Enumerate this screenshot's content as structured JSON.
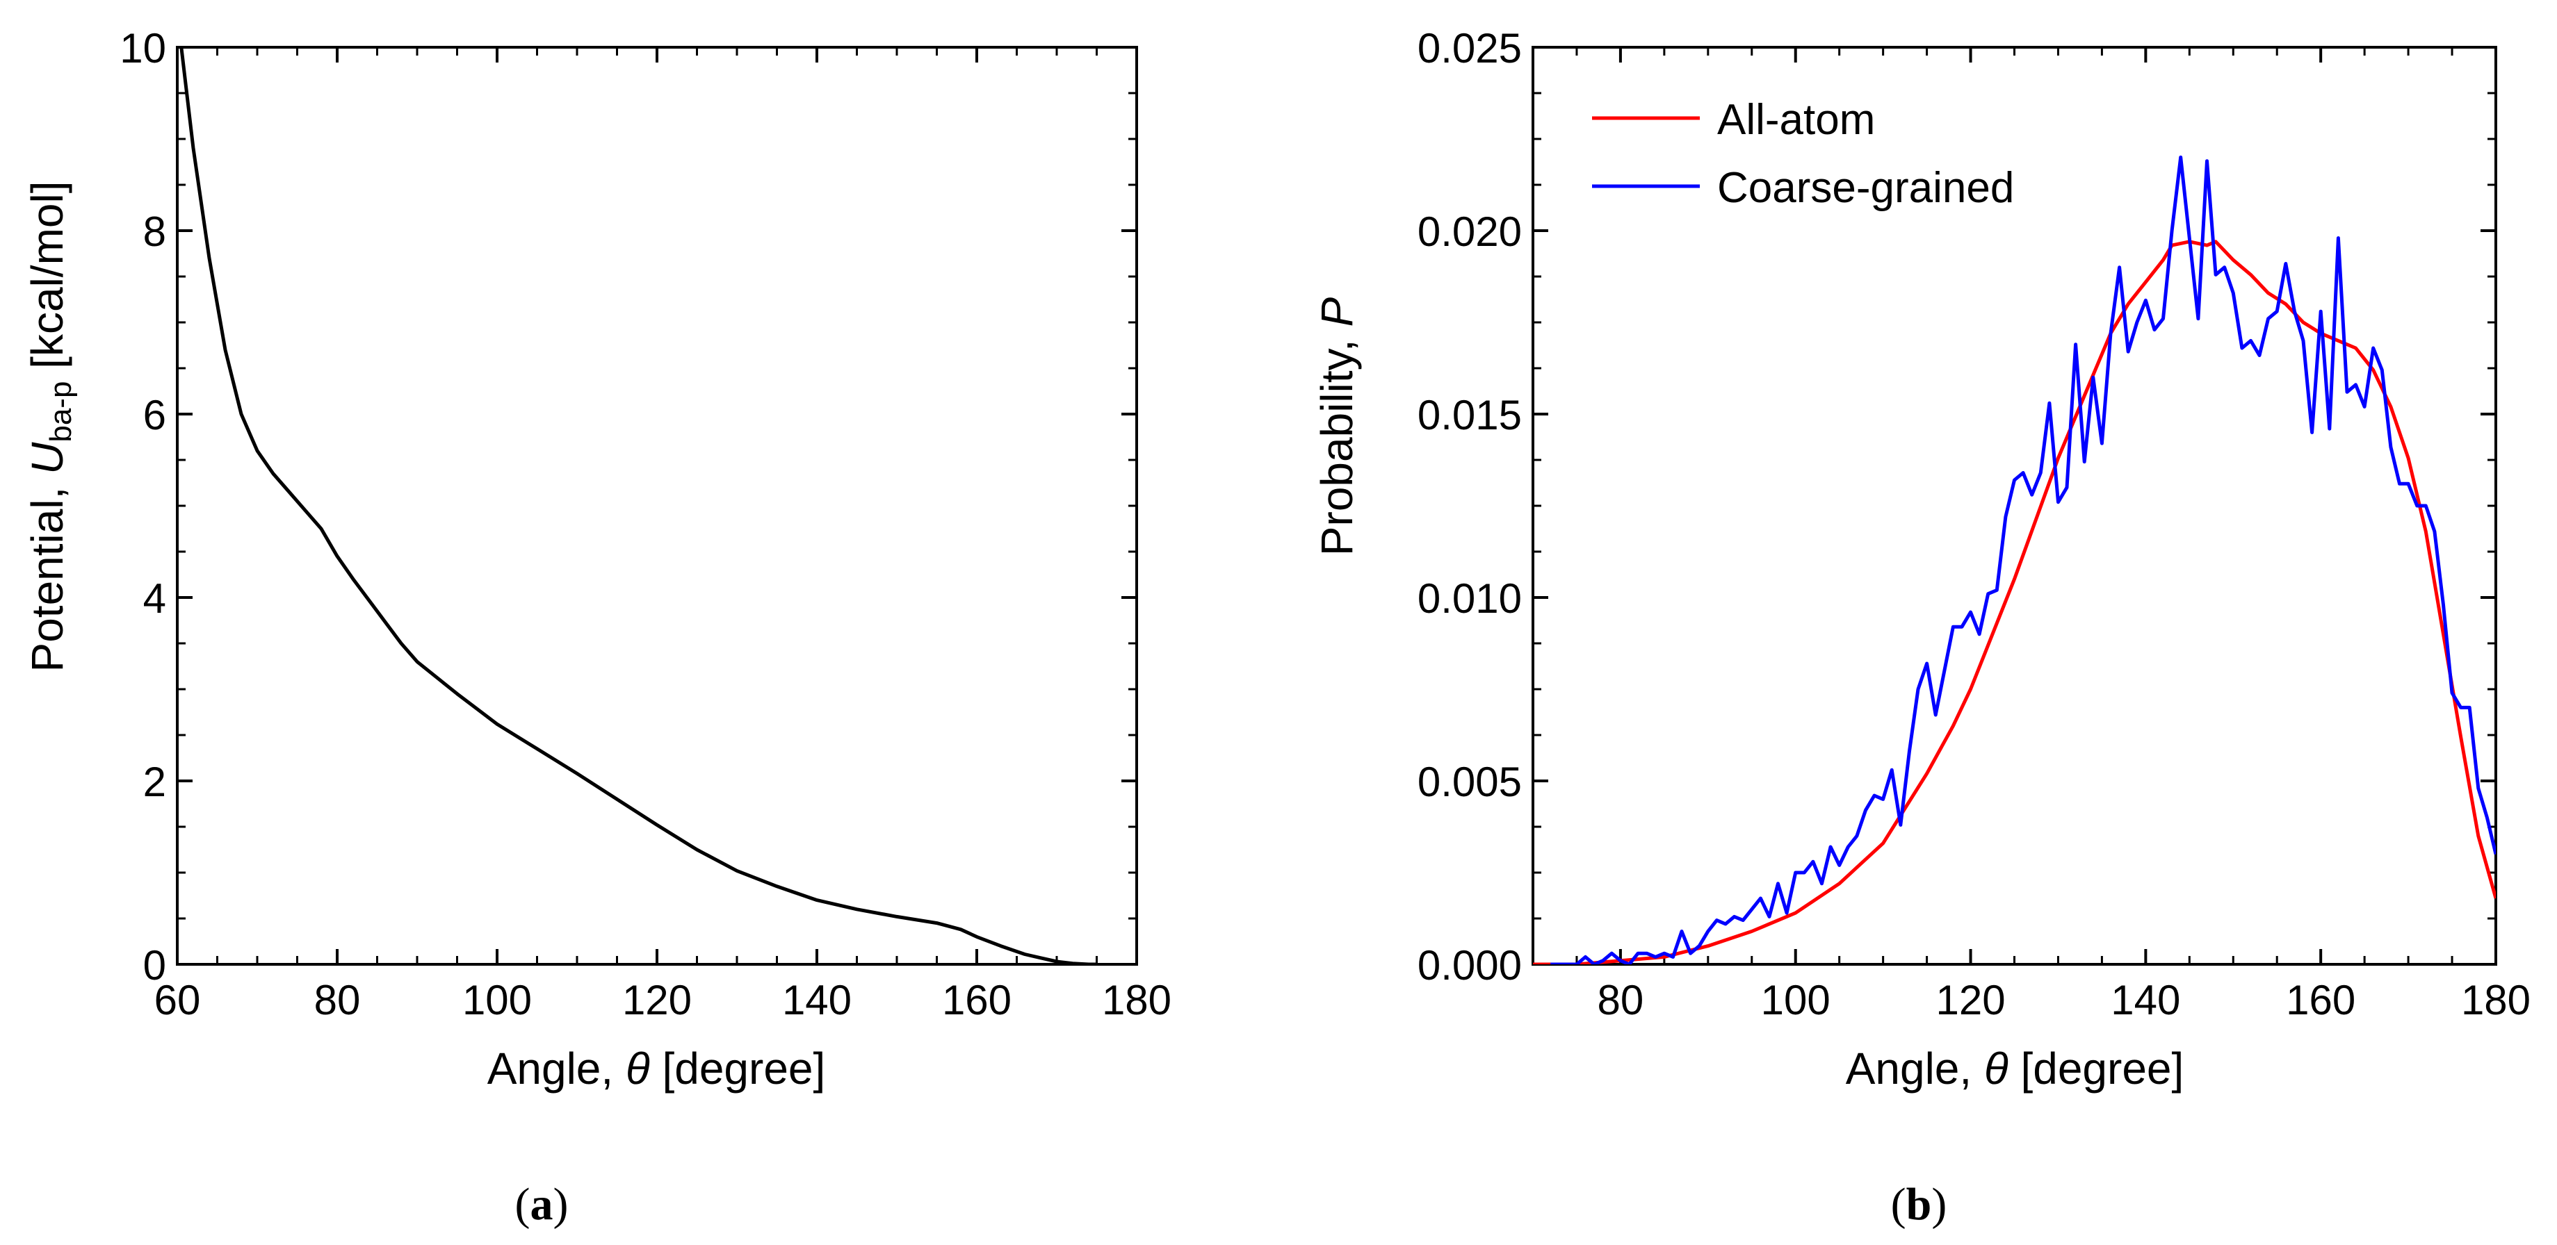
{
  "figure": {
    "panel_a_caption_open": "(",
    "panel_a_caption_letter": "a",
    "panel_a_caption_close": ")",
    "panel_b_caption_open": "(",
    "panel_b_caption_letter": "b",
    "panel_b_caption_close": ")"
  },
  "chart_data": [
    {
      "id": "a",
      "type": "line",
      "xlabel_prefix": "Angle, ",
      "xlabel_symbol": "θ",
      "xlabel_suffix": " [degree]",
      "ylabel_prefix": "Potential, ",
      "ylabel_symbol": "U",
      "ylabel_subscript": "ba-p",
      "ylabel_suffix": " [kcal/mol]",
      "xlim": [
        60,
        180
      ],
      "ylim": [
        0,
        10
      ],
      "xticks": [
        60,
        80,
        100,
        120,
        140,
        160,
        180
      ],
      "yticks": [
        0,
        2,
        4,
        6,
        8,
        10
      ],
      "color": "#000000",
      "series": [
        {
          "name": "U_ba-p",
          "x": [
            60.5,
            62,
            64,
            66,
            68,
            70,
            72,
            74,
            76,
            78,
            80,
            82,
            85,
            88,
            90,
            95,
            100,
            105,
            110,
            115,
            120,
            125,
            130,
            135,
            140,
            145,
            150,
            155,
            158,
            160,
            163,
            166,
            168,
            170,
            172,
            174,
            175
          ],
          "y": [
            10.0,
            8.9,
            7.7,
            6.7,
            6.0,
            5.6,
            5.35,
            5.15,
            4.95,
            4.75,
            4.45,
            4.2,
            3.85,
            3.5,
            3.3,
            2.95,
            2.62,
            2.35,
            2.08,
            1.8,
            1.52,
            1.25,
            1.02,
            0.85,
            0.7,
            0.6,
            0.52,
            0.45,
            0.38,
            0.3,
            0.2,
            0.11,
            0.07,
            0.03,
            0.01,
            0.0,
            0.0
          ]
        }
      ]
    },
    {
      "id": "b",
      "type": "line",
      "xlabel_prefix": "Angle, ",
      "xlabel_symbol": "θ",
      "xlabel_suffix": " [degree]",
      "ylabel_prefix": "Probability, ",
      "ylabel_symbol": "P",
      "xlim": [
        70,
        180
      ],
      "ylim": [
        0,
        0.025
      ],
      "xticks": [
        80,
        100,
        120,
        140,
        160,
        180
      ],
      "xtick_labels": [
        "80",
        "100",
        "120",
        "140",
        "160",
        "180"
      ],
      "yticks": [
        0,
        0.005,
        0.01,
        0.015,
        0.02,
        0.025
      ],
      "ytick_labels": [
        "0.000",
        "0.005",
        "0.010",
        "0.015",
        "0.020",
        "0.025"
      ],
      "legend_position": "top-left",
      "series": [
        {
          "name": "All-atom",
          "color": "#ff0000",
          "x": [
            70,
            75,
            80,
            85,
            90,
            95,
            100,
            105,
            110,
            115,
            118,
            120,
            125,
            130,
            133,
            136,
            138,
            140,
            142,
            143,
            145,
            147,
            148,
            150,
            152,
            154,
            156,
            158,
            160,
            162,
            164,
            166,
            168,
            170,
            172,
            174,
            176,
            178,
            180
          ],
          "y": [
            0.0,
            0.0,
            0.0001,
            0.0002,
            0.0005,
            0.0009,
            0.0014,
            0.0022,
            0.0033,
            0.0052,
            0.0065,
            0.0075,
            0.0105,
            0.0138,
            0.0155,
            0.0172,
            0.018,
            0.0186,
            0.0192,
            0.0196,
            0.0197,
            0.0196,
            0.0197,
            0.0192,
            0.0188,
            0.0183,
            0.018,
            0.0175,
            0.0172,
            0.017,
            0.0168,
            0.0162,
            0.0152,
            0.0138,
            0.0118,
            0.009,
            0.0062,
            0.0035,
            0.0018
          ]
        },
        {
          "name": "Coarse-grained",
          "color": "#0000ff",
          "x": [
            72,
            75,
            76,
            77,
            78,
            79,
            80,
            81,
            82,
            83,
            84,
            85,
            86,
            87,
            88,
            89,
            90,
            91,
            92,
            93,
            94,
            95,
            96,
            97,
            98,
            99,
            100,
            101,
            102,
            103,
            104,
            105,
            106,
            107,
            108,
            109,
            110,
            111,
            112,
            113,
            114,
            115,
            116,
            117,
            118,
            119,
            120,
            121,
            122,
            123,
            124,
            125,
            126,
            127,
            128,
            129,
            130,
            131,
            132,
            133,
            134,
            135,
            136,
            137,
            138,
            139,
            140,
            141,
            142,
            143,
            144,
            145,
            146,
            147,
            148,
            149,
            150,
            151,
            152,
            153,
            154,
            155,
            156,
            157,
            158,
            159,
            160,
            161,
            162,
            163,
            164,
            165,
            166,
            167,
            168,
            169,
            170,
            171,
            172,
            173,
            174,
            175,
            176,
            177,
            178,
            179,
            180
          ],
          "y": [
            0.0,
            0.0,
            0.0002,
            0.0,
            0.0001,
            0.0003,
            0.0001,
            0.0,
            0.0003,
            0.0003,
            0.0002,
            0.0003,
            0.0002,
            0.0009,
            0.0003,
            0.0005,
            0.0009,
            0.0012,
            0.0011,
            0.0013,
            0.0012,
            0.0015,
            0.0018,
            0.0013,
            0.0022,
            0.0014,
            0.0025,
            0.0025,
            0.0028,
            0.0022,
            0.0032,
            0.0027,
            0.0032,
            0.0035,
            0.0042,
            0.0046,
            0.0045,
            0.0053,
            0.0038,
            0.0058,
            0.0075,
            0.0082,
            0.0068,
            0.008,
            0.0092,
            0.0092,
            0.0096,
            0.009,
            0.0101,
            0.0102,
            0.0122,
            0.0132,
            0.0134,
            0.0128,
            0.0134,
            0.0153,
            0.0126,
            0.013,
            0.0169,
            0.0137,
            0.016,
            0.0142,
            0.0172,
            0.019,
            0.0167,
            0.0175,
            0.0181,
            0.0173,
            0.0176,
            0.02,
            0.022,
            0.0198,
            0.0176,
            0.0219,
            0.0188,
            0.019,
            0.0183,
            0.0168,
            0.017,
            0.0166,
            0.0176,
            0.0178,
            0.0191,
            0.0178,
            0.017,
            0.0145,
            0.0178,
            0.0146,
            0.0198,
            0.0156,
            0.0158,
            0.0152,
            0.0168,
            0.0162,
            0.0141,
            0.0131,
            0.0131,
            0.0125,
            0.0125,
            0.0118,
            0.0098,
            0.0074,
            0.007,
            0.007,
            0.0048,
            0.004,
            0.003
          ]
        }
      ]
    }
  ]
}
